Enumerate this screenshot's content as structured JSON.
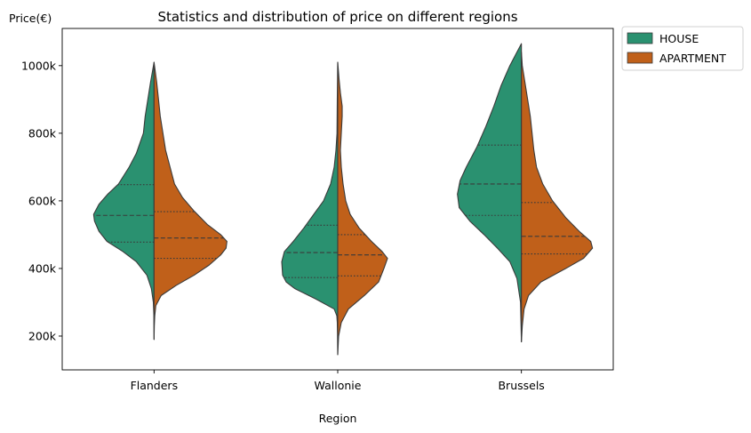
{
  "chart_data": {
    "type": "violin",
    "title": "Statistics and distribution of price on different regions",
    "xlabel": "Region",
    "ylabel": "Price(€)",
    "ylim": [
      100000,
      1110000
    ],
    "yticks": [
      200000,
      400000,
      600000,
      800000,
      1000000
    ],
    "ytick_labels": [
      "200k",
      "400k",
      "600k",
      "800k",
      "1000k"
    ],
    "categories": [
      "Flanders",
      "Wallonie",
      "Brussels"
    ],
    "legend": {
      "position": "outside-top-right",
      "entries": [
        "HOUSE",
        "APARTMENT"
      ]
    },
    "colors": {
      "HOUSE": "#2a9170",
      "APARTMENT": "#c0601a",
      "outline": "#3a3a3a"
    },
    "series": [
      {
        "name": "HOUSE",
        "side": "left",
        "violins": [
          {
            "category": "Flanders",
            "quartiles": [
              478000,
              557000,
              648000
            ],
            "profile": [
              [
                190000,
                0
              ],
              [
                260000,
                0.2
              ],
              [
                300000,
                0.8
              ],
              [
                340000,
                3
              ],
              [
                380000,
                8
              ],
              [
                420000,
                20
              ],
              [
                450000,
                35
              ],
              [
                480000,
                53
              ],
              [
                510000,
                62
              ],
              [
                540000,
                67
              ],
              [
                560000,
                68
              ],
              [
                590000,
                62
              ],
              [
                620000,
                52
              ],
              [
                650000,
                40
              ],
              [
                700000,
                28
              ],
              [
                740000,
                20
              ],
              [
                800000,
                12
              ],
              [
                850000,
                10
              ],
              [
                900000,
                7
              ],
              [
                950000,
                4
              ],
              [
                980000,
                2
              ],
              [
                1010000,
                0
              ]
            ]
          },
          {
            "category": "Wallonie",
            "quartiles": [
              373000,
              447000,
              528000
            ],
            "profile": [
              [
                145000,
                0
              ],
              [
                200000,
                0.2
              ],
              [
                240000,
                0.5
              ],
              [
                260000,
                1
              ],
              [
                280000,
                4
              ],
              [
                310000,
                25
              ],
              [
                340000,
                48
              ],
              [
                360000,
                58
              ],
              [
                380000,
                62
              ],
              [
                420000,
                63
              ],
              [
                450000,
                60
              ],
              [
                480000,
                50
              ],
              [
                520000,
                38
              ],
              [
                560000,
                27
              ],
              [
                600000,
                16
              ],
              [
                650000,
                8
              ],
              [
                700000,
                4
              ],
              [
                750000,
                2
              ],
              [
                800000,
                0.8
              ],
              [
                900000,
                0.5
              ],
              [
                1010000,
                0
              ]
            ]
          },
          {
            "category": "Brussels",
            "quartiles": [
              557000,
              650000,
              765000
            ],
            "profile": [
              [
                183000,
                0
              ],
              [
                300000,
                1
              ],
              [
                370000,
                5
              ],
              [
                420000,
                13
              ],
              [
                460000,
                27
              ],
              [
                500000,
                42
              ],
              [
                540000,
                58
              ],
              [
                580000,
                70
              ],
              [
                620000,
                72
              ],
              [
                660000,
                69
              ],
              [
                700000,
                62
              ],
              [
                760000,
                50
              ],
              [
                820000,
                40
              ],
              [
                880000,
                31
              ],
              [
                940000,
                23
              ],
              [
                1000000,
                13
              ],
              [
                1040000,
                5
              ],
              [
                1065000,
                0
              ]
            ]
          }
        ]
      },
      {
        "name": "APARTMENT",
        "side": "right",
        "violins": [
          {
            "category": "Flanders",
            "quartiles": [
              430000,
              490000,
              568000
            ],
            "profile": [
              [
                190000,
                0
              ],
              [
                230000,
                0.3
              ],
              [
                260000,
                0.8
              ],
              [
                290000,
                2
              ],
              [
                320000,
                8
              ],
              [
                350000,
                25
              ],
              [
                380000,
                45
              ],
              [
                410000,
                62
              ],
              [
                440000,
                75
              ],
              [
                460000,
                81
              ],
              [
                480000,
                82
              ],
              [
                500000,
                75
              ],
              [
                530000,
                60
              ],
              [
                570000,
                45
              ],
              [
                610000,
                32
              ],
              [
                650000,
                23
              ],
              [
                700000,
                18
              ],
              [
                750000,
                13
              ],
              [
                800000,
                10
              ],
              [
                850000,
                7
              ],
              [
                900000,
                5
              ],
              [
                950000,
                3
              ],
              [
                990000,
                1
              ],
              [
                1010000,
                0
              ]
            ]
          },
          {
            "category": "Wallonie",
            "quartiles": [
              378000,
              440000,
              500000
            ],
            "profile": [
              [
                145000,
                0
              ],
              [
                200000,
                1
              ],
              [
                240000,
                4
              ],
              [
                280000,
                12
              ],
              [
                320000,
                30
              ],
              [
                360000,
                46
              ],
              [
                400000,
                52
              ],
              [
                430000,
                56
              ],
              [
                450000,
                50
              ],
              [
                480000,
                38
              ],
              [
                520000,
                24
              ],
              [
                560000,
                14
              ],
              [
                600000,
                9
              ],
              [
                650000,
                6
              ],
              [
                700000,
                4
              ],
              [
                750000,
                3
              ],
              [
                800000,
                4
              ],
              [
                850000,
                5
              ],
              [
                880000,
                5
              ],
              [
                920000,
                3
              ],
              [
                960000,
                1.5
              ],
              [
                1010000,
                0
              ]
            ]
          },
          {
            "category": "Brussels",
            "quartiles": [
              443000,
              495000,
              595000
            ],
            "profile": [
              [
                183000,
                0
              ],
              [
                230000,
                1
              ],
              [
                280000,
                3
              ],
              [
                320000,
                8
              ],
              [
                360000,
                22
              ],
              [
                400000,
                50
              ],
              [
                430000,
                70
              ],
              [
                460000,
                80
              ],
              [
                480000,
                78
              ],
              [
                510000,
                65
              ],
              [
                550000,
                50
              ],
              [
                600000,
                35
              ],
              [
                650000,
                24
              ],
              [
                700000,
                17
              ],
              [
                750000,
                14
              ],
              [
                800000,
                12
              ],
              [
                850000,
                10
              ],
              [
                900000,
                7
              ],
              [
                950000,
                4
              ],
              [
                1000000,
                1
              ],
              [
                1040000,
                0
              ]
            ]
          }
        ]
      }
    ]
  }
}
